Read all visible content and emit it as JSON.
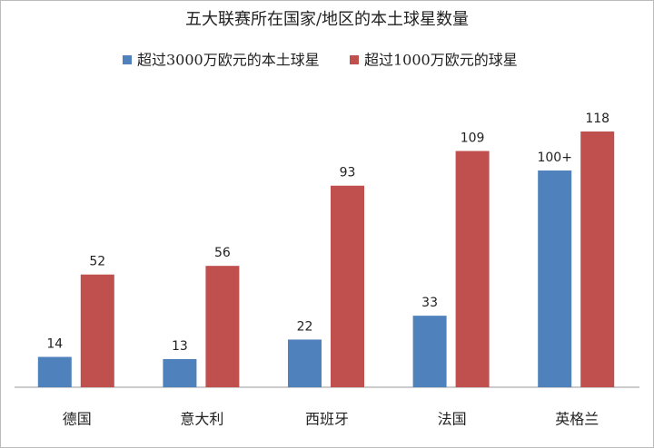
{
  "chart_data": {
    "type": "bar",
    "title": "五大联赛所在国家/地区的本土球星数量",
    "categories": [
      "德国",
      "意大利",
      "西班牙",
      "法国",
      "英格兰"
    ],
    "series": [
      {
        "name": "超过3000万欧元的本土球星",
        "color": "#4f81bd",
        "values": [
          14,
          13,
          22,
          33,
          100
        ],
        "value_labels": [
          "14",
          "13",
          "22",
          "33",
          "100+"
        ]
      },
      {
        "name": "超过1000万欧元的球星",
        "color": "#c0504d",
        "values": [
          52,
          56,
          93,
          109,
          118
        ]
      }
    ],
    "legend": "top"
  }
}
